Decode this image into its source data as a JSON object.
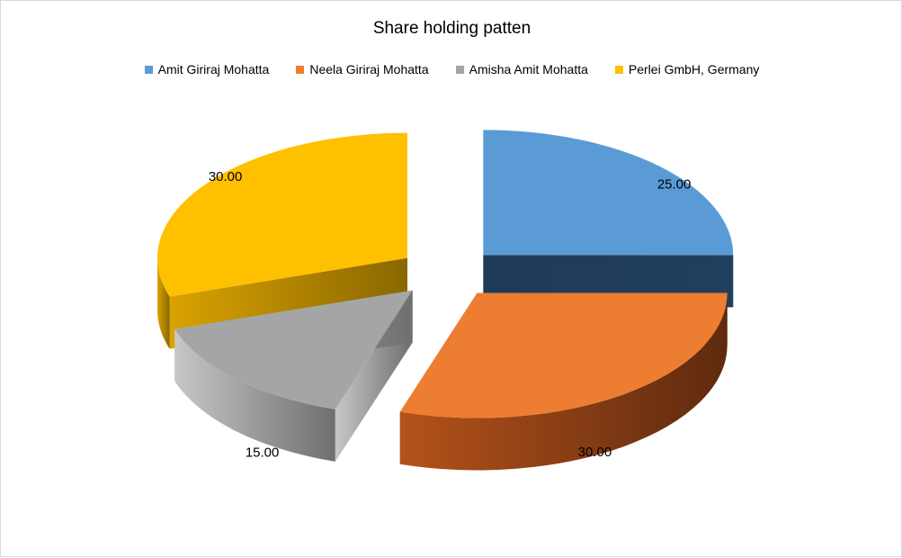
{
  "chart_data": {
    "type": "pie",
    "title": "Share holding patten",
    "legend_position": "top",
    "categories": [
      "Amit Giriraj Mohatta",
      "Neela Giriraj Mohatta",
      "Amisha Amit Mohatta",
      "Perlei GmbH, Germany"
    ],
    "values": [
      25,
      30,
      15,
      30
    ],
    "data_labels": [
      "25.00",
      "30.00",
      "15.00",
      "30.00"
    ],
    "colors": [
      "#5B9BD5",
      "#ED7D31",
      "#A5A5A5",
      "#FFC000"
    ],
    "exploded": true,
    "three_d": true
  }
}
